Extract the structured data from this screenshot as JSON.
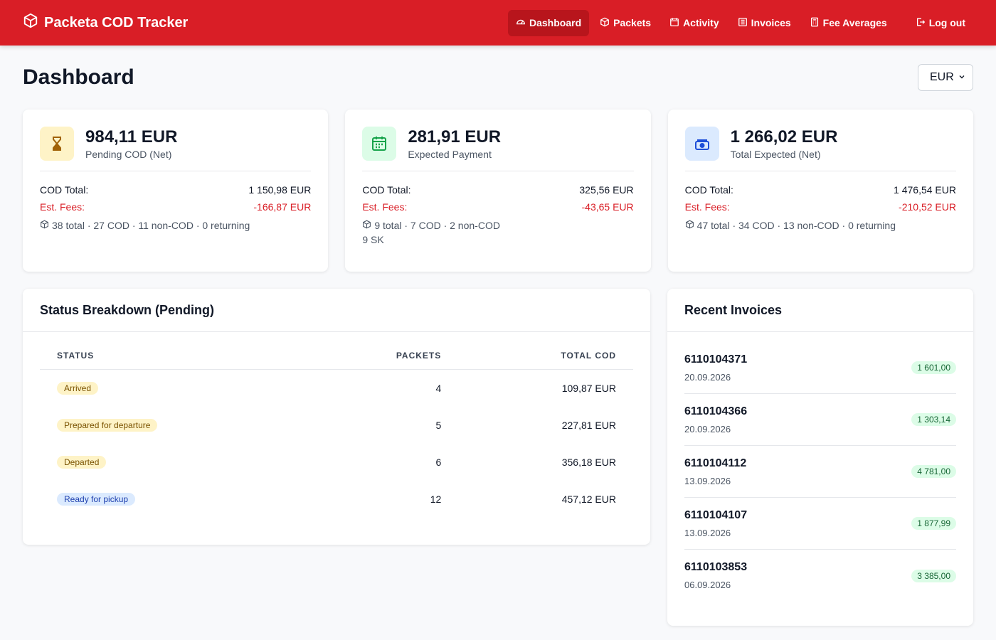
{
  "app": {
    "title": "Packeta COD Tracker"
  },
  "nav": {
    "items": [
      {
        "label": "Dashboard",
        "icon": "gauge-icon",
        "active": true
      },
      {
        "label": "Packets",
        "icon": "box-icon"
      },
      {
        "label": "Activity",
        "icon": "calendar-icon"
      },
      {
        "label": "Invoices",
        "icon": "document-icon"
      },
      {
        "label": "Fee Averages",
        "icon": "calculator-icon"
      }
    ],
    "logout": "Log out"
  },
  "header": {
    "title": "Dashboard",
    "currency": "EUR"
  },
  "cards": [
    {
      "amount": "984,11 EUR",
      "label": "Pending COD (Net)",
      "cod_label": "COD Total:",
      "cod_value": "1 150,98 EUR",
      "fee_label": "Est. Fees:",
      "fee_value": "-166,87 EUR",
      "note": "38 total · 27 COD · 11 non-COD · 0 returning",
      "extra": ""
    },
    {
      "amount": "281,91 EUR",
      "label": "Expected Payment",
      "cod_label": "COD Total:",
      "cod_value": "325,56 EUR",
      "fee_label": "Est. Fees:",
      "fee_value": "-43,65 EUR",
      "note": "9 total · 7 COD · 2 non-COD",
      "extra": "9 SK"
    },
    {
      "amount": "1 266,02 EUR",
      "label": "Total Expected (Net)",
      "cod_label": "COD Total:",
      "cod_value": "1 476,54 EUR",
      "fee_label": "Est. Fees:",
      "fee_value": "-210,52 EUR",
      "note": "47 total · 34 COD · 13 non-COD · 0 returning",
      "extra": ""
    }
  ],
  "status": {
    "title": "Status Breakdown (Pending)",
    "columns": [
      "STATUS",
      "PACKETS",
      "TOTAL COD"
    ],
    "rows": [
      {
        "status": "Arrived",
        "packets": "4",
        "total": "109,87 EUR",
        "color": "yellow"
      },
      {
        "status": "Prepared for departure",
        "packets": "5",
        "total": "227,81 EUR",
        "color": "yellow"
      },
      {
        "status": "Departed",
        "packets": "6",
        "total": "356,18 EUR",
        "color": "yellow"
      },
      {
        "status": "Ready for pickup",
        "packets": "12",
        "total": "457,12 EUR",
        "color": "blue"
      }
    ]
  },
  "invoices": {
    "title": "Recent Invoices",
    "items": [
      {
        "number": "6110104371",
        "date": "20.09.2026",
        "amount": "1 601,00"
      },
      {
        "number": "6110104366",
        "date": "20.09.2026",
        "amount": "1 303,14"
      },
      {
        "number": "6110104112",
        "date": "13.09.2026",
        "amount": "4 781,00"
      },
      {
        "number": "6110104107",
        "date": "13.09.2026",
        "amount": "1 877,99"
      },
      {
        "number": "6110103853",
        "date": "06.09.2026",
        "amount": "3 385,00"
      }
    ]
  }
}
